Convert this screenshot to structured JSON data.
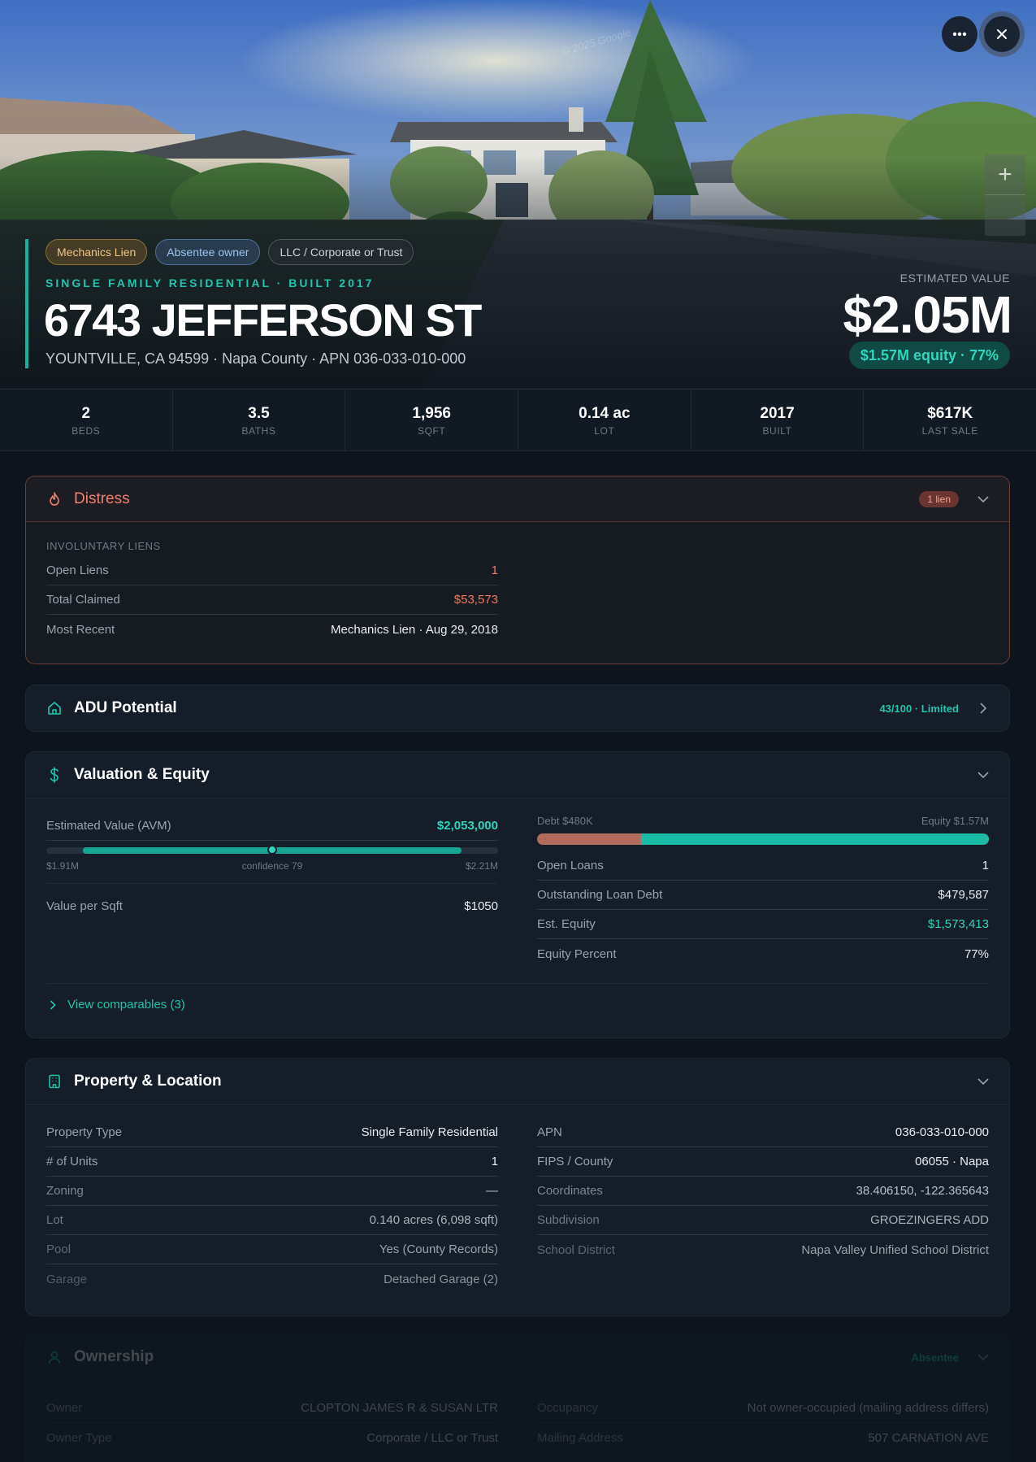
{
  "hero": {
    "watermark": "© 2025 Google",
    "chips": [
      "Mechanics Lien",
      "Absentee owner",
      "LLC / Corporate or Trust"
    ],
    "subtitle": "SINGLE FAMILY RESIDENTIAL · BUILT 2017",
    "address": "6743 JEFFERSON ST",
    "location": "YOUNTVILLE, CA 94599 · Napa County · APN 036-033-010-000",
    "estimated_label": "ESTIMATED VALUE",
    "estimated_value": "$2.05M",
    "equity_pill": "$1.57M equity · 77%",
    "more_icon": "ellipsis-icon",
    "close_icon": "close-icon",
    "zoom_plus": "+"
  },
  "stats": [
    {
      "value": "2",
      "label": "BEDS"
    },
    {
      "value": "3.5",
      "label": "BATHS"
    },
    {
      "value": "1,956",
      "label": "SQFT"
    },
    {
      "value": "0.14 ac",
      "label": "LOT"
    },
    {
      "value": "2017",
      "label": "BUILT"
    },
    {
      "value": "$617K",
      "label": "LAST SALE"
    }
  ],
  "distress": {
    "title": "Distress",
    "badge": "1 lien",
    "section": "INVOLUNTARY LIENS",
    "rows": [
      {
        "k": "Open Liens",
        "v": "1"
      },
      {
        "k": "Total Claimed",
        "v": "$53,573"
      },
      {
        "k": "Most Recent",
        "v": "Mechanics Lien · Aug 29, 2018"
      }
    ]
  },
  "adu": {
    "title": "ADU Potential",
    "score": "43/100 · Limited"
  },
  "valuation": {
    "title": "Valuation & Equity",
    "avm_label": "Estimated Value (AVM)",
    "avm_value": "$2,053,000",
    "avm_low": "$1.91M",
    "avm_confidence": "confidence 79",
    "avm_high": "$2.21M",
    "ppsf_label": "Value per Sqft",
    "ppsf_value": "$1050",
    "debt_label": "Debt $480K",
    "equity_label": "Equity $1.57M",
    "debt_fraction": 0.23,
    "rows": [
      {
        "k": "Open Loans",
        "v": "1"
      },
      {
        "k": "Outstanding Loan Debt",
        "v": "$479,587"
      },
      {
        "k": "Est. Equity",
        "v": "$1,573,413"
      },
      {
        "k": "Equity Percent",
        "v": "77%"
      }
    ],
    "comparables": "View comparables (3)"
  },
  "property": {
    "title": "Property & Location",
    "left": [
      {
        "k": "Property Type",
        "v": "Single Family Residential"
      },
      {
        "k": "# of Units",
        "v": "1"
      },
      {
        "k": "Zoning",
        "v": "—"
      },
      {
        "k": "Lot",
        "v": "0.140 acres (6,098 sqft)"
      },
      {
        "k": "Pool",
        "v": "Yes (County Records)"
      },
      {
        "k": "Garage",
        "v": "Detached Garage (2)"
      }
    ],
    "right": [
      {
        "k": "APN",
        "v": "036-033-010-000"
      },
      {
        "k": "FIPS / County",
        "v": "06055 · Napa"
      },
      {
        "k": "Coordinates",
        "v": "38.406150, -122.365643"
      },
      {
        "k": "Subdivision",
        "v": "GROEZINGERS ADD"
      },
      {
        "k": "School District",
        "v": "Napa Valley Unified School District"
      }
    ]
  },
  "ownership": {
    "title": "Ownership",
    "tag": "Absentee",
    "left": [
      {
        "k": "Owner",
        "v": "CLOPTON JAMES R & SUSAN LTR"
      },
      {
        "k": "Owner Type",
        "v": "Corporate / LLC or Trust"
      }
    ],
    "right": [
      {
        "k": "Occupancy",
        "v": "Not owner-occupied (mailing address differs)"
      },
      {
        "k": "Mailing Address",
        "v": "507 CARNATION AVE"
      }
    ]
  }
}
